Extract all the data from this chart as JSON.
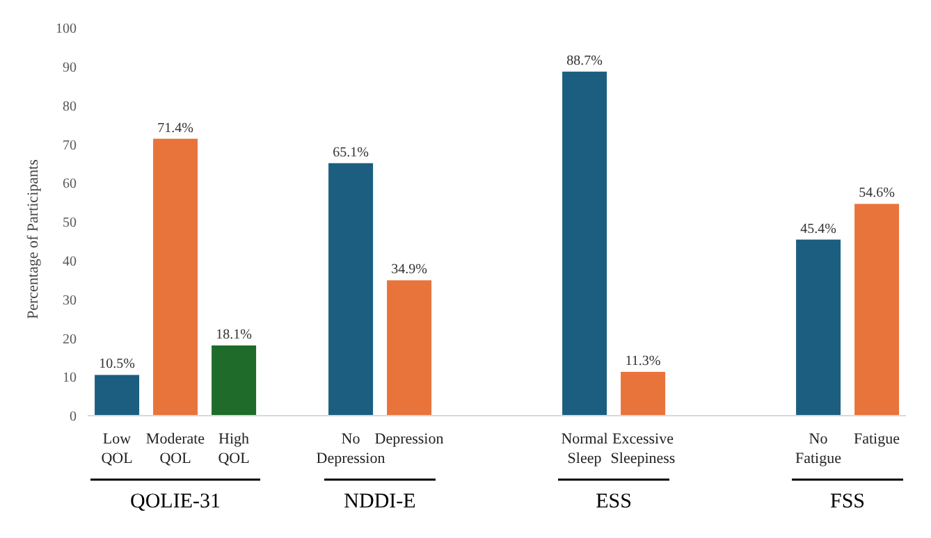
{
  "chart_data": {
    "type": "bar",
    "ylabel": "Percentage of Participants",
    "categories": [
      "Low QOL",
      "Moderate QOL",
      "High QOL",
      null,
      "No Depression",
      "Depression",
      null,
      null,
      "Normal Sleep",
      "Excessive Sleepiness",
      null,
      null,
      "No Fatigue",
      "Fatigue"
    ],
    "values": [
      10.5,
      71.4,
      18.1,
      null,
      65.1,
      34.9,
      null,
      null,
      88.7,
      11.3,
      null,
      null,
      45.4,
      54.6
    ],
    "colors": [
      "#1b5e80",
      "#e8743b",
      "#1e6b2a",
      null,
      "#1b5e80",
      "#e8743b",
      null,
      null,
      "#1b5e80",
      "#e8743b",
      null,
      null,
      "#1b5e80",
      "#e8743b"
    ],
    "value_labels": [
      "10.5%",
      "71.4%",
      "18.1%",
      null,
      "65.1%",
      "34.9%",
      null,
      null,
      "88.7%",
      "11.3%",
      null,
      null,
      "45.4%",
      "54.6%"
    ],
    "annotations": [
      "QOLIE-31",
      "NDDI-E",
      "ESS",
      "FSS"
    ],
    "ylim": [
      0,
      100
    ],
    "yticks": [
      0,
      10,
      20,
      30,
      40,
      50,
      60,
      70,
      80,
      90,
      100
    ],
    "grid": false,
    "legend": false
  }
}
